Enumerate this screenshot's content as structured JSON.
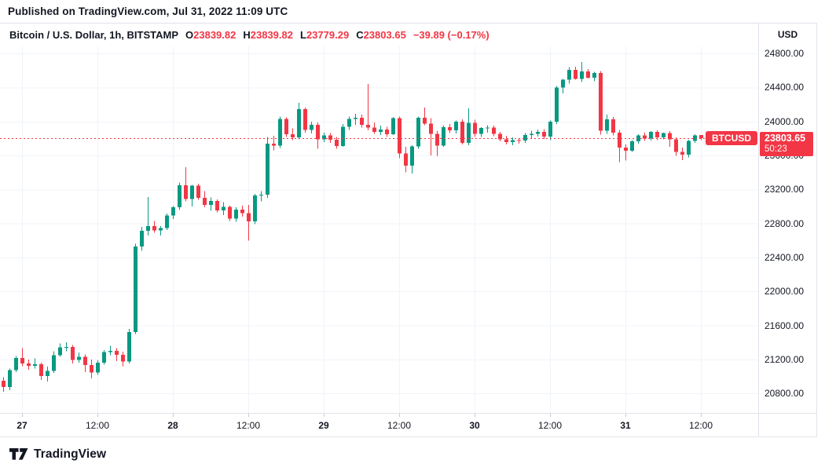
{
  "header": {
    "published": "Published on TradingView.com, Jul 31, 2022 11:09 UTC"
  },
  "legend": {
    "symbol_title": "Bitcoin / U.S. Dollar, 1h, BITSTAMP",
    "ohlc": {
      "o_label": "O",
      "o_value": "23839.82",
      "h_label": "H",
      "h_value": "23839.82",
      "l_label": "L",
      "l_value": "23779.29",
      "c_label": "C",
      "c_value": "23803.65",
      "change": "−39.89 (−0.17%)"
    }
  },
  "price_axis": {
    "unit": "USD",
    "labels": [
      "24800.00",
      "24400.00",
      "24000.00",
      "23600.00",
      "23200.00",
      "22800.00",
      "22400.00",
      "22000.00",
      "21600.00",
      "21200.00",
      "20800.00"
    ],
    "tag": {
      "symbol": "BTCUSD",
      "price": "23803.65",
      "countdown": "50:23"
    }
  },
  "footer": {
    "brand": "TradingView"
  },
  "colors": {
    "up": "#089981",
    "down": "#f23645",
    "grid": "#f0f3fa",
    "text": "#131722",
    "axis_border": "#e0e3eb",
    "tag_bg": "#f23645",
    "price_line": "#f23645"
  },
  "chart_data": {
    "type": "candlestick",
    "title": "Bitcoin / U.S. Dollar",
    "symbol": "BTCUSD",
    "exchange": "BITSTAMP",
    "interval": "1h",
    "start_time": "2022-07-26 21:00 UTC",
    "end_time": "2022-07-31 11:00 UTC",
    "last_price": 23803.65,
    "price_range": [
      20570,
      24885
    ],
    "grid_price_min": 20800,
    "grid_price_max": 24800,
    "grid_price_step": 400,
    "grid": true,
    "time_ticks": [
      {
        "index": 3,
        "label": "27",
        "major": true
      },
      {
        "index": 15,
        "label": "12:00",
        "major": false
      },
      {
        "index": 27,
        "label": "28",
        "major": true
      },
      {
        "index": 39,
        "label": "12:00",
        "major": false
      },
      {
        "index": 51,
        "label": "29",
        "major": true
      },
      {
        "index": 63,
        "label": "12:00",
        "major": false
      },
      {
        "index": 75,
        "label": "30",
        "major": true
      },
      {
        "index": 87,
        "label": "12:00",
        "major": false
      },
      {
        "index": 99,
        "label": "31",
        "major": true
      },
      {
        "index": 111,
        "label": "12:00",
        "major": false
      }
    ],
    "candles_format": [
      "open",
      "high",
      "low",
      "close"
    ],
    "candles": [
      [
        20950,
        20990,
        20820,
        20875
      ],
      [
        20875,
        21090,
        20840,
        21075
      ],
      [
        21075,
        21240,
        21050,
        21215
      ],
      [
        21215,
        21330,
        21120,
        21150
      ],
      [
        21150,
        21200,
        21080,
        21125
      ],
      [
        21125,
        21210,
        21090,
        21145
      ],
      [
        21145,
        21160,
        20960,
        21005
      ],
      [
        21005,
        21115,
        20940,
        21065
      ],
      [
        21065,
        21295,
        21040,
        21250
      ],
      [
        21250,
        21390,
        21230,
        21340
      ],
      [
        21340,
        21400,
        21295,
        21345
      ],
      [
        21345,
        21370,
        21150,
        21195
      ],
      [
        21195,
        21280,
        21160,
        21230
      ],
      [
        21230,
        21260,
        21050,
        21135
      ],
      [
        21135,
        21200,
        20975,
        21045
      ],
      [
        21045,
        21190,
        21020,
        21160
      ],
      [
        21160,
        21310,
        21140,
        21285
      ],
      [
        21285,
        21360,
        21250,
        21300
      ],
      [
        21300,
        21330,
        21180,
        21255
      ],
      [
        21255,
        21290,
        21120,
        21175
      ],
      [
        21175,
        21560,
        21150,
        21520
      ],
      [
        21520,
        22560,
        21500,
        22530
      ],
      [
        22530,
        22760,
        22480,
        22715
      ],
      [
        22715,
        23110,
        22660,
        22770
      ],
      [
        22770,
        22830,
        22690,
        22720
      ],
      [
        22720,
        22770,
        22660,
        22745
      ],
      [
        22745,
        22915,
        22725,
        22895
      ],
      [
        22895,
        23005,
        22850,
        22990
      ],
      [
        22990,
        23280,
        22960,
        23250
      ],
      [
        23250,
        23460,
        23060,
        23090
      ],
      [
        23090,
        23255,
        23000,
        23245
      ],
      [
        23245,
        23270,
        23080,
        23100
      ],
      [
        23100,
        23180,
        22990,
        23020
      ],
      [
        23020,
        23105,
        22950,
        23065
      ],
      [
        23065,
        23085,
        22930,
        22955
      ],
      [
        22955,
        23050,
        22900,
        22995
      ],
      [
        22995,
        23010,
        22830,
        22855
      ],
      [
        22855,
        22990,
        22820,
        22965
      ],
      [
        22965,
        23010,
        22880,
        22920
      ],
      [
        22920,
        23020,
        22600,
        22825
      ],
      [
        22825,
        23150,
        22790,
        23130
      ],
      [
        23130,
        23180,
        23060,
        23140
      ],
      [
        23140,
        23820,
        23100,
        23740
      ],
      [
        23740,
        23830,
        23660,
        23715
      ],
      [
        23715,
        24060,
        23690,
        24030
      ],
      [
        24030,
        24050,
        23820,
        23850
      ],
      [
        23850,
        23920,
        23780,
        23815
      ],
      [
        23815,
        24220,
        23790,
        24145
      ],
      [
        24145,
        24165,
        23870,
        23900
      ],
      [
        23900,
        24000,
        23860,
        23960
      ],
      [
        23960,
        23990,
        23680,
        23790
      ],
      [
        23790,
        23870,
        23760,
        23835
      ],
      [
        23835,
        23865,
        23750,
        23785
      ],
      [
        23785,
        23820,
        23680,
        23712
      ],
      [
        23712,
        23970,
        23700,
        23940
      ],
      [
        23940,
        24060,
        23900,
        24032
      ],
      [
        24032,
        24090,
        23960,
        24042
      ],
      [
        24042,
        24080,
        23930,
        23962
      ],
      [
        23962,
        24440,
        23895,
        23928
      ],
      [
        23928,
        23990,
        23855,
        23878
      ],
      [
        23878,
        23950,
        23840,
        23905
      ],
      [
        23905,
        23940,
        23820,
        23852
      ],
      [
        23852,
        24055,
        23840,
        24040
      ],
      [
        24040,
        24060,
        23570,
        23625
      ],
      [
        23625,
        23700,
        23400,
        23480
      ],
      [
        23480,
        23720,
        23390,
        23705
      ],
      [
        23705,
        24060,
        23680,
        24045
      ],
      [
        24045,
        24165,
        23955,
        23975
      ],
      [
        23975,
        24040,
        23600,
        23855
      ],
      [
        23855,
        23890,
        23590,
        23718
      ],
      [
        23718,
        23950,
        23700,
        23935
      ],
      [
        23935,
        23970,
        23865,
        23895
      ],
      [
        23895,
        24010,
        23860,
        24000
      ],
      [
        24000,
        24025,
        23730,
        23748
      ],
      [
        23748,
        24155,
        23720,
        23985
      ],
      [
        23985,
        24020,
        23818,
        23855
      ],
      [
        23855,
        23935,
        23820,
        23926
      ],
      [
        23926,
        23955,
        23868,
        23930
      ],
      [
        23930,
        23950,
        23828,
        23856
      ],
      [
        23856,
        23880,
        23768,
        23790
      ],
      [
        23790,
        23830,
        23728,
        23756
      ],
      [
        23756,
        23812,
        23720,
        23782
      ],
      [
        23782,
        23802,
        23740,
        23778
      ],
      [
        23778,
        23862,
        23750,
        23842
      ],
      [
        23842,
        23892,
        23800,
        23856
      ],
      [
        23856,
        23906,
        23824,
        23880
      ],
      [
        23880,
        23912,
        23795,
        23822
      ],
      [
        23822,
        24010,
        23780,
        24000
      ],
      [
        24000,
        24420,
        23968,
        24402
      ],
      [
        24402,
        24502,
        24330,
        24490
      ],
      [
        24490,
        24642,
        24448,
        24606
      ],
      [
        24606,
        24645,
        24490,
        24500
      ],
      [
        24500,
        24700,
        24465,
        24590
      ],
      [
        24590,
        24615,
        24505,
        24515
      ],
      [
        24515,
        24585,
        24475,
        24570
      ],
      [
        24570,
        24592,
        23845,
        23892
      ],
      [
        23892,
        24080,
        23855,
        24025
      ],
      [
        24025,
        24052,
        23838,
        23870
      ],
      [
        23870,
        23902,
        23520,
        23692
      ],
      [
        23692,
        23730,
        23540,
        23656
      ],
      [
        23656,
        23782,
        23640,
        23766
      ],
      [
        23766,
        23852,
        23740,
        23836
      ],
      [
        23836,
        23870,
        23770,
        23800
      ],
      [
        23800,
        23886,
        23775,
        23876
      ],
      [
        23876,
        23896,
        23780,
        23812
      ],
      [
        23812,
        23870,
        23790,
        23862
      ],
      [
        23862,
        23886,
        23700,
        23790
      ],
      [
        23790,
        23812,
        23598,
        23640
      ],
      [
        23640,
        23692,
        23545,
        23612
      ],
      [
        23612,
        23786,
        23578,
        23772
      ],
      [
        23772,
        23852,
        23748,
        23838
      ],
      [
        23839.82,
        23839.82,
        23779.29,
        23803.65
      ]
    ]
  }
}
